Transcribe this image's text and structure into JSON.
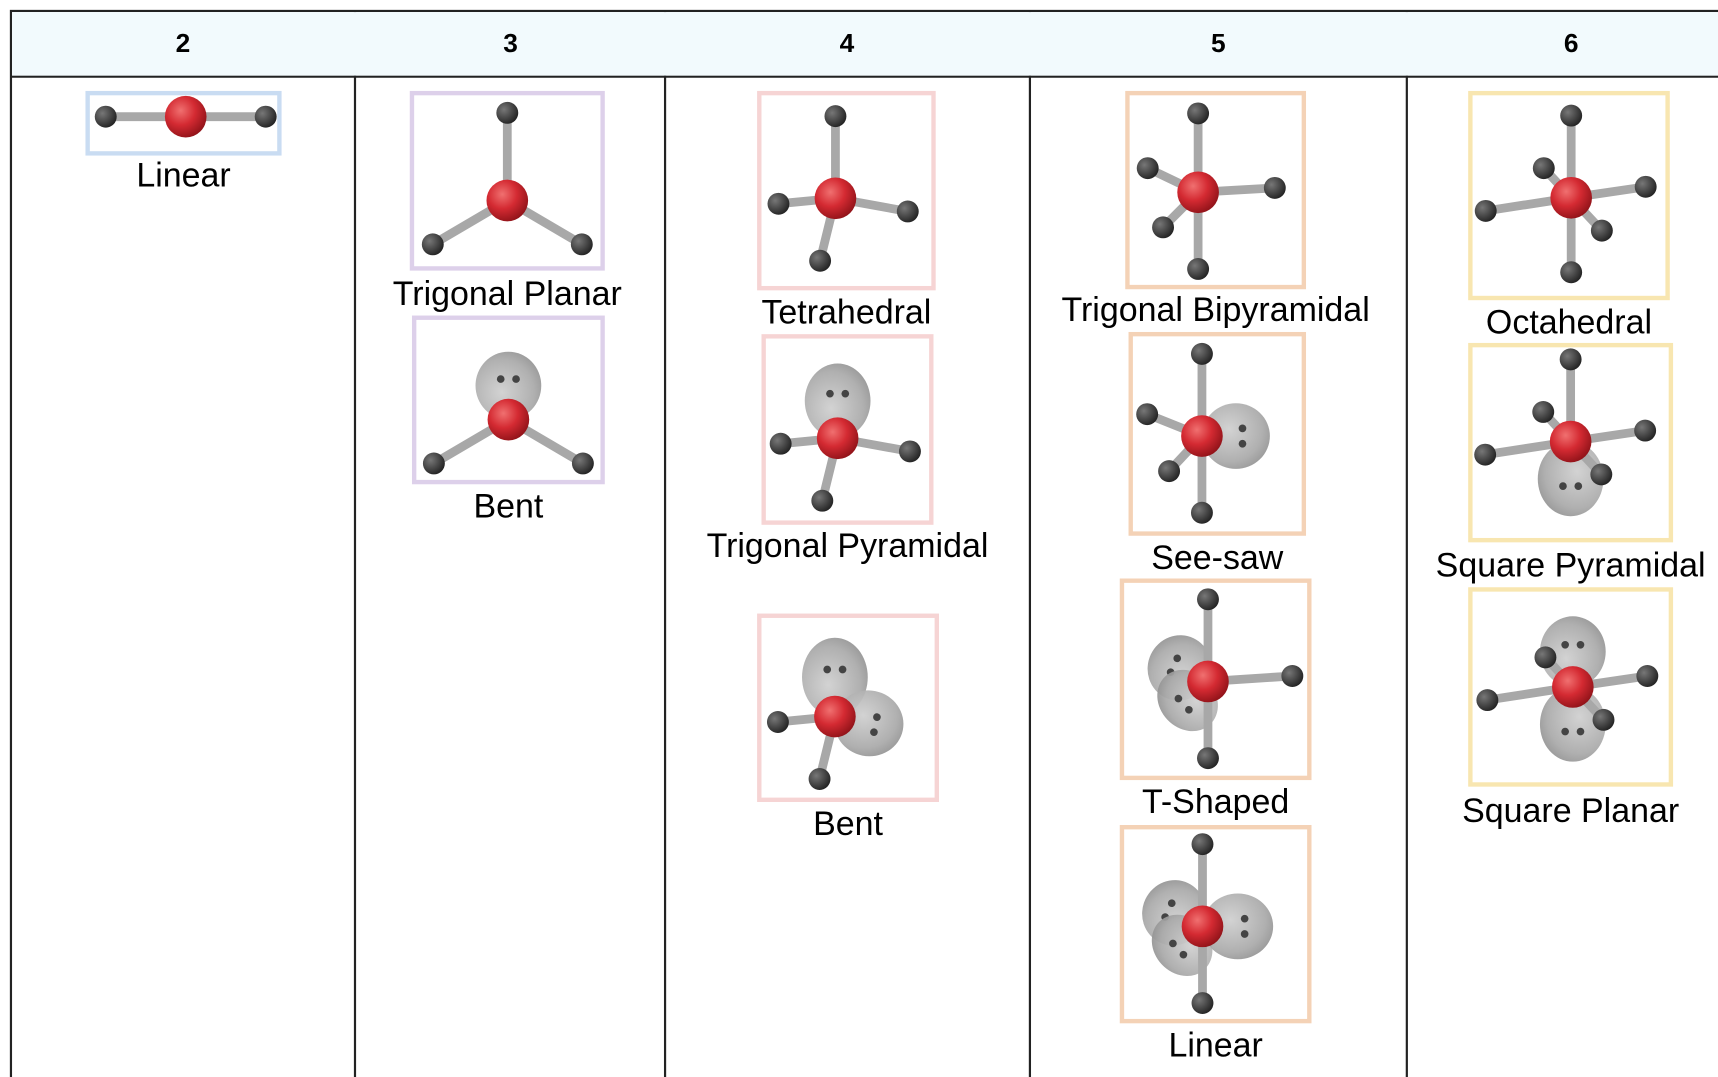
{
  "table": {
    "headers": [
      "2",
      "3",
      "4",
      "5",
      "6"
    ],
    "columns": [
      [
        "Linear"
      ],
      [
        "Trigonal Planar",
        "Bent"
      ],
      [
        "Tetrahedral",
        "Trigonal Pyramidal",
        "Bent"
      ],
      [
        "Trigonal Bipyramidal",
        "See-saw",
        "T-Shaped",
        "Linear"
      ],
      [
        "Octahedral",
        "Square Pyramidal",
        "Square Planar"
      ]
    ]
  }
}
